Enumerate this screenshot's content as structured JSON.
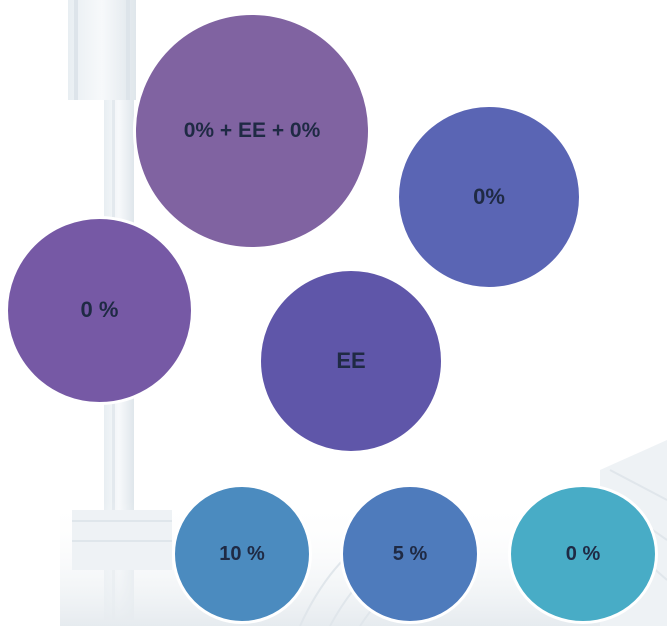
{
  "circles": [
    {
      "id": "top-center",
      "label": "0% + EE + 0%",
      "color": "#8063a1"
    },
    {
      "id": "top-right",
      "label": "0%",
      "color": "#5a65b4"
    },
    {
      "id": "middle-left",
      "label": "0 %",
      "color": "#7659a5"
    },
    {
      "id": "middle-center",
      "label": "EE",
      "color": "#5f56a9"
    },
    {
      "id": "bottom-left",
      "label": "10 %",
      "color": "#4b8bbf"
    },
    {
      "id": "bottom-middle",
      "label": "5 %",
      "color": "#4e7bbc"
    },
    {
      "id": "bottom-right",
      "label": "0 %",
      "color": "#48acc6"
    }
  ]
}
